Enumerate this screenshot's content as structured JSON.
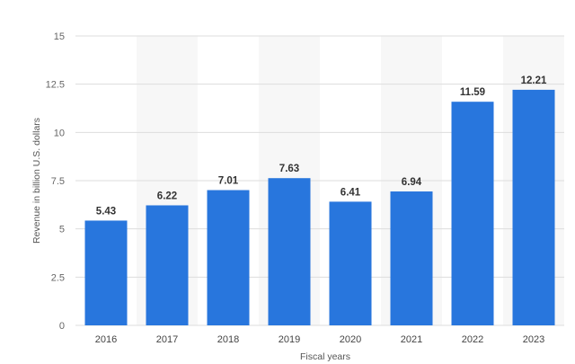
{
  "chart_data": {
    "type": "bar",
    "categories": [
      "2016",
      "2017",
      "2018",
      "2019",
      "2020",
      "2021",
      "2022",
      "2023"
    ],
    "values": [
      5.43,
      6.22,
      7.01,
      7.63,
      6.41,
      6.94,
      11.59,
      12.21
    ],
    "value_labels": [
      "5.43",
      "6.22",
      "7.01",
      "7.63",
      "6.41",
      "6.94",
      "11.59",
      "12.21"
    ],
    "title": "",
    "xlabel": "Fiscal years",
    "ylabel": "Revenue in billion U.S. dollars",
    "ylim": [
      0,
      15
    ],
    "yticks": [
      0,
      2.5,
      5,
      7.5,
      10,
      12.5,
      15
    ],
    "ytick_labels": [
      "0",
      "2.5",
      "5",
      "7.5",
      "10",
      "12.5",
      "15"
    ],
    "grid": true,
    "legend": "none",
    "bar_color": "#2876dd",
    "alternate_band_color": "#f7f7f7",
    "grid_color": "#dddddd"
  }
}
